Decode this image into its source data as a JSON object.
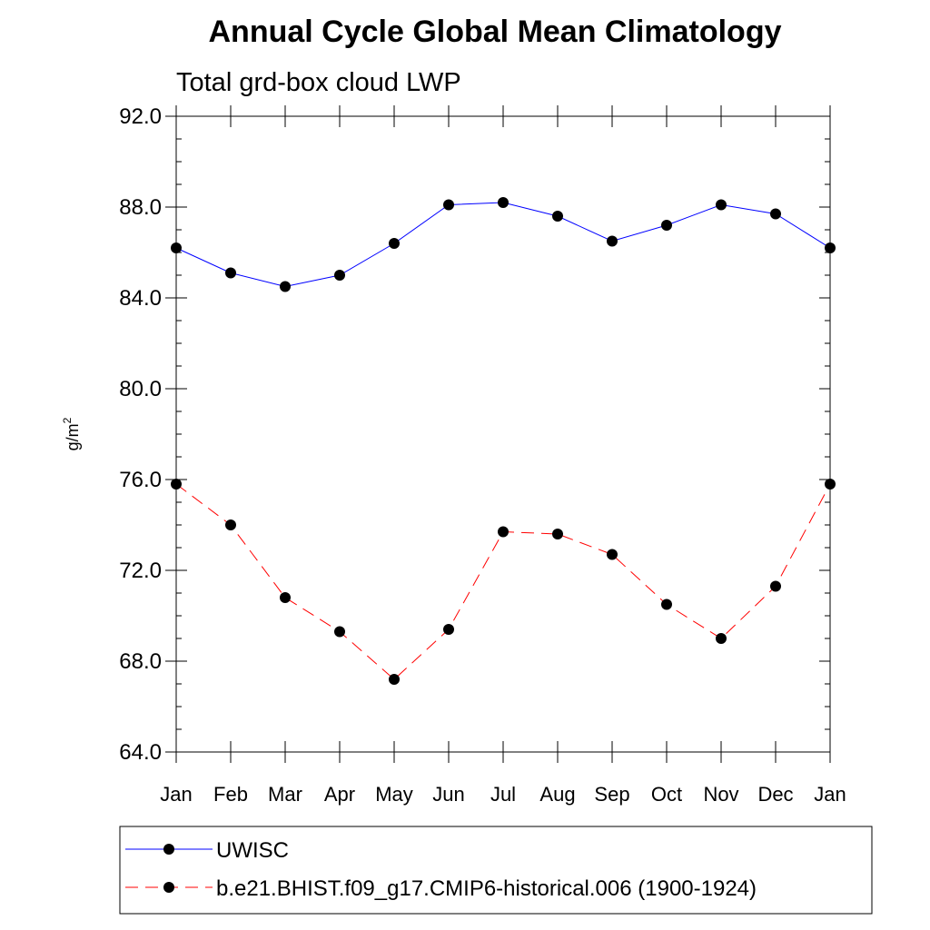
{
  "chart_data": {
    "type": "line",
    "title": "Annual Cycle Global Mean Climatology",
    "subtitle": "Total grd-box cloud LWP",
    "xlabel": "",
    "ylabel": "g/m",
    "ylabel_superscript": "2",
    "categories": [
      "Jan",
      "Feb",
      "Mar",
      "Apr",
      "May",
      "Jun",
      "Jul",
      "Aug",
      "Sep",
      "Oct",
      "Nov",
      "Dec",
      "Jan"
    ],
    "ylim": [
      64.0,
      92.0
    ],
    "yticks": [
      "64.0",
      "68.0",
      "72.0",
      "76.0",
      "80.0",
      "84.0",
      "88.0",
      "92.0"
    ],
    "grid": false,
    "legend_position": "bottom",
    "series": [
      {
        "name": "UWISC",
        "color": "#0000ff",
        "line_style": "solid",
        "marker": "filled-circle",
        "values": [
          86.2,
          85.1,
          84.5,
          85.0,
          86.4,
          88.1,
          88.2,
          87.6,
          86.5,
          87.2,
          88.1,
          87.7,
          86.2
        ]
      },
      {
        "name": "b.e21.BHIST.f09_g17.CMIP6-historical.006 (1900-1924)",
        "color": "#ff0000",
        "line_style": "dashed",
        "marker": "filled-circle",
        "values": [
          75.8,
          74.0,
          70.8,
          69.3,
          67.2,
          69.4,
          73.7,
          73.6,
          72.7,
          70.5,
          69.0,
          71.3,
          75.8
        ]
      }
    ]
  }
}
